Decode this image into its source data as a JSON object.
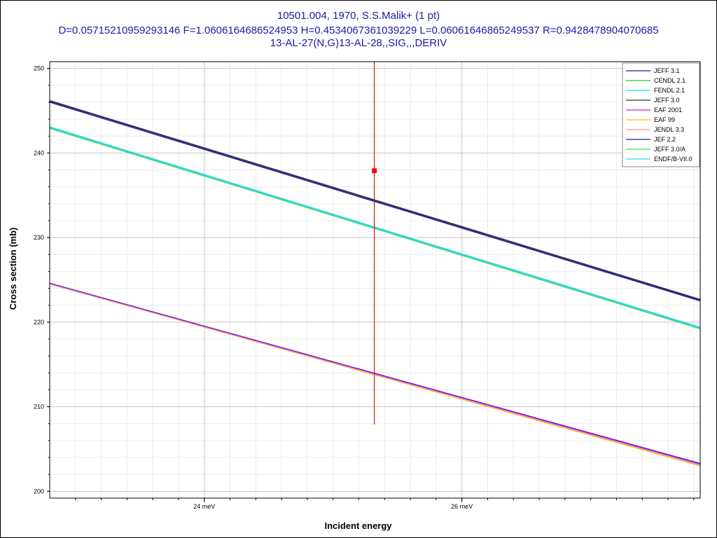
{
  "title": {
    "line1": "10501.004, 1970, S.S.Malik+ (1 pt)",
    "line2": "D=0.05715210959293146 F=1.0606164686524953 H=0.4534067361039229 L=0.06061646865249537 R=0.9428478904070685",
    "line3": "13-AL-27(N,G)13-AL-28,,SIG,,,DERIV"
  },
  "chart_data": {
    "type": "line",
    "xlabel": "Incident energy",
    "ylabel": "Cross section (mb)",
    "xlim": [
      22.8,
      27.85
    ],
    "ylim": [
      199.2,
      250.8
    ],
    "x_ticks": [
      {
        "value": 24,
        "label": "24 meV"
      },
      {
        "value": 26,
        "label": "26 meV"
      }
    ],
    "y_ticks": [
      200,
      210,
      220,
      230,
      240,
      250
    ],
    "grid": true,
    "legend_position": "top-right",
    "series": [
      {
        "name": "JEFF 3.1",
        "color": "#1a1a80",
        "x": [
          22.8,
          27.85
        ],
        "y": [
          246.1,
          222.6
        ]
      },
      {
        "name": "CENDL 2.1",
        "color": "#22cc22",
        "x": [
          22.8,
          27.85
        ],
        "y": [
          243.0,
          219.3
        ]
      },
      {
        "name": "FENDL 2.1",
        "color": "#22dddd",
        "x": [
          22.8,
          27.85
        ],
        "y": [
          243.1,
          219.4
        ]
      },
      {
        "name": "JEFF 3.0",
        "color": "#333333",
        "x": [
          22.8,
          27.85
        ],
        "y": [
          246.2,
          222.7
        ]
      },
      {
        "name": "EAF 2001",
        "color": "#cc22cc",
        "x": [
          22.8,
          27.85
        ],
        "y": [
          224.6,
          203.2
        ]
      },
      {
        "name": "EAF 99",
        "color": "#e6c800",
        "x": [
          22.8,
          27.85
        ],
        "y": [
          224.5,
          203.0
        ]
      },
      {
        "name": "JENDL 3.3",
        "color": "#ff9090",
        "x": [
          22.8,
          27.85
        ],
        "y": [
          224.5,
          203.1
        ]
      },
      {
        "name": "JEF 2.2",
        "color": "#2020a0",
        "x": [
          22.8,
          27.85
        ],
        "y": [
          246.0,
          222.5
        ]
      },
      {
        "name": "JEFF 3.0/A",
        "color": "#44dd44",
        "x": [
          22.8,
          27.85
        ],
        "y": [
          242.9,
          219.2
        ]
      },
      {
        "name": "ENDF/B-VII.0",
        "color": "#33ccff",
        "x": [
          22.8,
          27.85
        ],
        "y": [
          243.0,
          219.3
        ]
      },
      {
        "name": "",
        "color": "#5a1ae0",
        "x": [
          22.8,
          27.85
        ],
        "y": [
          224.6,
          203.3
        ]
      }
    ],
    "experiment": {
      "x": 25.32,
      "y": 237.9,
      "y_err_low": 207.9,
      "y_err_high": 250.8,
      "color": "#e01010"
    }
  }
}
